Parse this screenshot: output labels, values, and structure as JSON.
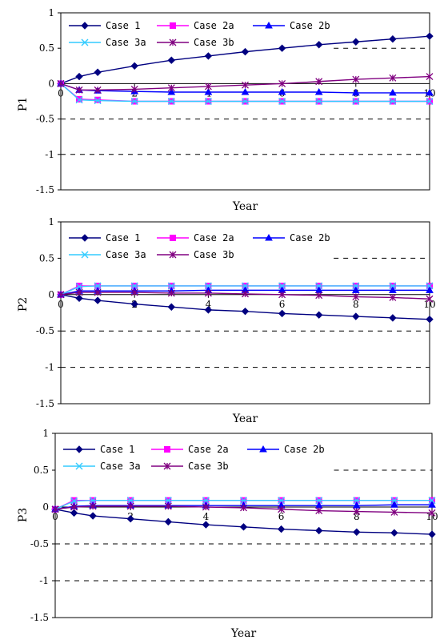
{
  "chart_data": [
    {
      "type": "line",
      "title": "",
      "xlabel": "Year",
      "ylabel": "P1",
      "xlim": [
        0,
        10
      ],
      "ylim": [
        -1.5,
        1
      ],
      "yticks": [
        "1",
        "0.5",
        "0",
        "-0.5",
        "-1",
        "-1.5"
      ],
      "xticks": [
        "0",
        "2",
        "4",
        "6",
        "8",
        "10"
      ],
      "grid": false,
      "reference_lines": [
        0.5,
        -0.5,
        -1
      ],
      "legend": "top-left inside",
      "series": [
        {
          "name": "Case 1",
          "color": "#000080",
          "marker": "diamond",
          "x": [
            0,
            0.5,
            1,
            2,
            3,
            4,
            5,
            6,
            7,
            8,
            9,
            10
          ],
          "y": [
            0,
            0.1,
            0.16,
            0.25,
            0.33,
            0.39,
            0.45,
            0.5,
            0.55,
            0.59,
            0.63,
            0.67
          ]
        },
        {
          "name": "Case 2a",
          "color": "#ff00ff",
          "marker": "square",
          "x": [
            0,
            0.5,
            1,
            2,
            3,
            4,
            5,
            6,
            7,
            8,
            9,
            10
          ],
          "y": [
            0,
            -0.22,
            -0.23,
            -0.25,
            -0.25,
            -0.25,
            -0.25,
            -0.25,
            -0.25,
            -0.25,
            -0.25,
            -0.25
          ]
        },
        {
          "name": "Case 2b",
          "color": "#0000ff",
          "marker": "triangle",
          "x": [
            0,
            0.5,
            1,
            2,
            3,
            4,
            5,
            6,
            7,
            8,
            9,
            10
          ],
          "y": [
            0,
            -0.09,
            -0.1,
            -0.11,
            -0.12,
            -0.12,
            -0.12,
            -0.12,
            -0.12,
            -0.13,
            -0.13,
            -0.13
          ]
        },
        {
          "name": "Case 3a",
          "color": "#33ccff",
          "marker": "x",
          "x": [
            0,
            0.5,
            1,
            2,
            3,
            4,
            5,
            6,
            7,
            8,
            9,
            10
          ],
          "y": [
            0,
            -0.23,
            -0.24,
            -0.25,
            -0.25,
            -0.25,
            -0.25,
            -0.25,
            -0.25,
            -0.25,
            -0.25,
            -0.25
          ]
        },
        {
          "name": "Case 3b",
          "color": "#800080",
          "marker": "star",
          "x": [
            0,
            0.5,
            1,
            2,
            3,
            4,
            5,
            6,
            7,
            8,
            9,
            10
          ],
          "y": [
            0,
            -0.09,
            -0.09,
            -0.08,
            -0.06,
            -0.04,
            -0.02,
            0.0,
            0.03,
            0.06,
            0.08,
            0.1
          ]
        }
      ]
    },
    {
      "type": "line",
      "title": "",
      "xlabel": "Year",
      "ylabel": "P2",
      "xlim": [
        0,
        10
      ],
      "ylim": [
        -1.5,
        1
      ],
      "yticks": [
        "1",
        "0.5",
        "0",
        "-0.5",
        "-1",
        "-1.5"
      ],
      "xticks": [
        "0",
        "2",
        "4",
        "6",
        "8",
        "10"
      ],
      "grid": false,
      "reference_lines": [
        0.5,
        -0.5,
        -1
      ],
      "legend": "top-left inside",
      "series": [
        {
          "name": "Case 1",
          "color": "#000080",
          "marker": "diamond",
          "x": [
            0,
            0.5,
            1,
            2,
            3,
            4,
            5,
            6,
            7,
            8,
            9,
            10
          ],
          "y": [
            0,
            -0.05,
            -0.08,
            -0.13,
            -0.17,
            -0.21,
            -0.23,
            -0.26,
            -0.28,
            -0.3,
            -0.32,
            -0.34
          ]
        },
        {
          "name": "Case 2a",
          "color": "#ff00ff",
          "marker": "square",
          "x": [
            0,
            0.5,
            1,
            2,
            3,
            4,
            5,
            6,
            7,
            8,
            9,
            10
          ],
          "y": [
            0,
            0.12,
            0.12,
            0.12,
            0.12,
            0.12,
            0.12,
            0.12,
            0.12,
            0.12,
            0.12,
            0.12
          ]
        },
        {
          "name": "Case 2b",
          "color": "#0000ff",
          "marker": "triangle",
          "x": [
            0,
            0.5,
            1,
            2,
            3,
            4,
            5,
            6,
            7,
            8,
            9,
            10
          ],
          "y": [
            0,
            0.05,
            0.05,
            0.05,
            0.05,
            0.06,
            0.06,
            0.06,
            0.06,
            0.06,
            0.06,
            0.06
          ]
        },
        {
          "name": "Case 3a",
          "color": "#33ccff",
          "marker": "x",
          "x": [
            0,
            0.5,
            1,
            2,
            3,
            4,
            5,
            6,
            7,
            8,
            9,
            10
          ],
          "y": [
            0,
            0.11,
            0.12,
            0.12,
            0.12,
            0.12,
            0.12,
            0.12,
            0.12,
            0.12,
            0.12,
            0.12
          ]
        },
        {
          "name": "Case 3b",
          "color": "#800080",
          "marker": "star",
          "x": [
            0,
            0.5,
            1,
            2,
            3,
            4,
            5,
            6,
            7,
            8,
            9,
            10
          ],
          "y": [
            0,
            0.03,
            0.03,
            0.03,
            0.02,
            0.02,
            0.01,
            0.0,
            -0.01,
            -0.03,
            -0.04,
            -0.06
          ]
        }
      ]
    },
    {
      "type": "line",
      "title": "",
      "xlabel": "Year",
      "ylabel": "P3",
      "xlim": [
        0,
        10
      ],
      "ylim": [
        -1.5,
        1
      ],
      "yticks": [
        "1",
        "0.5",
        "0",
        "-0.5",
        "-1",
        "-1.5"
      ],
      "xticks": [
        "0",
        "2",
        "4",
        "6",
        "8",
        "10"
      ],
      "grid": false,
      "reference_lines": [
        0.5,
        -0.5,
        -1
      ],
      "legend": "top-left inside",
      "series": [
        {
          "name": "Case 1",
          "color": "#000080",
          "marker": "diamond",
          "x": [
            0,
            0.5,
            1,
            2,
            3,
            4,
            5,
            6,
            7,
            8,
            9,
            10
          ],
          "y": [
            -0.03,
            -0.08,
            -0.12,
            -0.16,
            -0.2,
            -0.24,
            -0.27,
            -0.3,
            -0.32,
            -0.34,
            -0.35,
            -0.37
          ]
        },
        {
          "name": "Case 2a",
          "color": "#ff00ff",
          "marker": "square",
          "x": [
            0,
            0.5,
            1,
            2,
            3,
            4,
            5,
            6,
            7,
            8,
            9,
            10
          ],
          "y": [
            -0.03,
            0.09,
            0.09,
            0.09,
            0.09,
            0.09,
            0.09,
            0.09,
            0.09,
            0.09,
            0.09,
            0.09
          ]
        },
        {
          "name": "Case 2b",
          "color": "#0000ff",
          "marker": "triangle",
          "x": [
            0,
            0.5,
            1,
            2,
            3,
            4,
            5,
            6,
            7,
            8,
            9,
            10
          ],
          "y": [
            -0.03,
            0.01,
            0.02,
            0.02,
            0.02,
            0.02,
            0.02,
            0.02,
            0.02,
            0.02,
            0.03,
            0.03
          ]
        },
        {
          "name": "Case 3a",
          "color": "#33ccff",
          "marker": "x",
          "x": [
            0,
            0.5,
            1,
            2,
            3,
            4,
            5,
            6,
            7,
            8,
            9,
            10
          ],
          "y": [
            -0.03,
            0.08,
            0.09,
            0.09,
            0.09,
            0.09,
            0.09,
            0.09,
            0.09,
            0.09,
            0.09,
            0.09
          ]
        },
        {
          "name": "Case 3b",
          "color": "#800080",
          "marker": "star",
          "x": [
            0,
            0.5,
            1,
            2,
            3,
            4,
            5,
            6,
            7,
            8,
            9,
            10
          ],
          "y": [
            -0.03,
            0.0,
            0.01,
            0.01,
            0.01,
            0.0,
            -0.01,
            -0.03,
            -0.05,
            -0.06,
            -0.07,
            -0.08
          ]
        }
      ]
    }
  ]
}
